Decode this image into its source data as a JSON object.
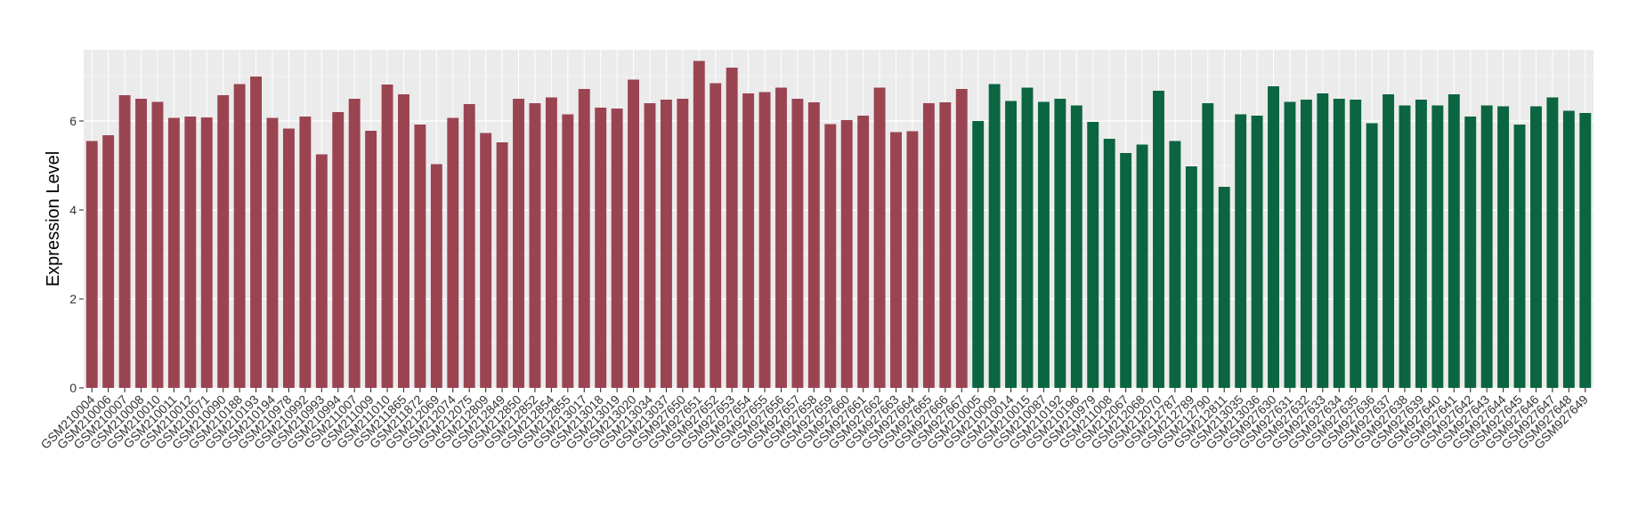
{
  "chart_data": {
    "type": "bar",
    "title": "",
    "xlabel": "",
    "ylabel": "Expression Level",
    "ylim": [
      0,
      7.6
    ],
    "yticks": [
      0,
      2,
      4,
      6
    ],
    "grid": true,
    "legend": "none",
    "colors": {
      "group1": "#9B4451",
      "group2": "#0B6540",
      "panel": "#EBEBEB",
      "grid": "#FFFFFF"
    },
    "categories": [
      "GSM210004",
      "GSM210006",
      "GSM210007",
      "GSM210008",
      "GSM210010",
      "GSM210011",
      "GSM210012",
      "GSM210071",
      "GSM210090",
      "GSM210188",
      "GSM210193",
      "GSM210194",
      "GSM210978",
      "GSM210992",
      "GSM210993",
      "GSM210994",
      "GSM211007",
      "GSM211009",
      "GSM211010",
      "GSM211865",
      "GSM211872",
      "GSM212069",
      "GSM212074",
      "GSM212075",
      "GSM212809",
      "GSM212849",
      "GSM212850",
      "GSM212852",
      "GSM212854",
      "GSM212855",
      "GSM213017",
      "GSM213018",
      "GSM213019",
      "GSM213020",
      "GSM213034",
      "GSM213037",
      "GSM927650",
      "GSM927651",
      "GSM927652",
      "GSM927653",
      "GSM927654",
      "GSM927655",
      "GSM927656",
      "GSM927657",
      "GSM927658",
      "GSM927659",
      "GSM927660",
      "GSM927661",
      "GSM927662",
      "GSM927663",
      "GSM927664",
      "GSM927665",
      "GSM927666",
      "GSM927667",
      "GSM210005",
      "GSM210009",
      "GSM210014",
      "GSM210015",
      "GSM210087",
      "GSM210192",
      "GSM210196",
      "GSM210979",
      "GSM211008",
      "GSM212067",
      "GSM212068",
      "GSM212070",
      "GSM212787",
      "GSM212789",
      "GSM212790",
      "GSM212811",
      "GSM213035",
      "GSM213036",
      "GSM927630",
      "GSM927631",
      "GSM927632",
      "GSM927633",
      "GSM927634",
      "GSM927635",
      "GSM927636",
      "GSM927637",
      "GSM927638",
      "GSM927639",
      "GSM927640",
      "GSM927641",
      "GSM927642",
      "GSM927643",
      "GSM927644",
      "GSM927645",
      "GSM927646",
      "GSM927647",
      "GSM927648",
      "GSM927649"
    ],
    "values": [
      5.55,
      5.68,
      6.58,
      6.5,
      6.43,
      6.07,
      6.1,
      6.08,
      6.58,
      6.83,
      7.0,
      6.07,
      5.83,
      6.1,
      5.25,
      6.2,
      6.5,
      5.78,
      6.82,
      6.6,
      5.92,
      5.03,
      6.07,
      6.38,
      5.73,
      5.52,
      6.5,
      6.4,
      6.53,
      6.15,
      6.72,
      6.3,
      6.28,
      6.93,
      6.4,
      6.48,
      6.5,
      7.35,
      6.85,
      7.2,
      6.62,
      6.65,
      6.75,
      6.5,
      6.42,
      5.93,
      6.02,
      6.12,
      6.75,
      5.75,
      5.77,
      6.4,
      6.42,
      6.72,
      6.0,
      6.83,
      6.45,
      6.75,
      6.43,
      6.5,
      6.35,
      5.98,
      5.6,
      5.28,
      5.47,
      6.68,
      5.55,
      4.98,
      6.4,
      4.52,
      6.15,
      6.12,
      6.78,
      6.43,
      6.48,
      6.62,
      6.5,
      6.48,
      5.95,
      6.6,
      6.35,
      6.48,
      6.35,
      6.6,
      6.1,
      6.35,
      6.33,
      5.92,
      6.33,
      6.53,
      6.23,
      6.18
    ],
    "groups": [
      1,
      1,
      1,
      1,
      1,
      1,
      1,
      1,
      1,
      1,
      1,
      1,
      1,
      1,
      1,
      1,
      1,
      1,
      1,
      1,
      1,
      1,
      1,
      1,
      1,
      1,
      1,
      1,
      1,
      1,
      1,
      1,
      1,
      1,
      1,
      1,
      1,
      1,
      1,
      1,
      1,
      1,
      1,
      1,
      1,
      1,
      1,
      1,
      1,
      1,
      1,
      1,
      1,
      1,
      2,
      2,
      2,
      2,
      2,
      2,
      2,
      2,
      2,
      2,
      2,
      2,
      2,
      2,
      2,
      2,
      2,
      2,
      2,
      2,
      2,
      2,
      2,
      2,
      2,
      2,
      2,
      2,
      2,
      2,
      2,
      2,
      2,
      2,
      2,
      2,
      2,
      2
    ]
  }
}
